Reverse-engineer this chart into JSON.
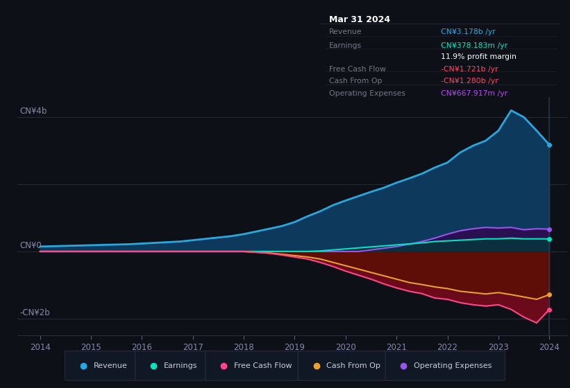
{
  "bg_color": "#0d1117",
  "title_box": {
    "date": "Mar 31 2024",
    "rows": [
      {
        "label": "Revenue",
        "value": "CN¥3.178b /yr",
        "value_color": "#29a8e0"
      },
      {
        "label": "Earnings",
        "value": "CN¥378.183m /yr",
        "value_color": "#00e5c0"
      },
      {
        "label": "",
        "value": "11.9% profit margin",
        "value_color": "#ffffff"
      },
      {
        "label": "Free Cash Flow",
        "value": "-CN¥1.721b /yr",
        "value_color": "#ff4466"
      },
      {
        "label": "Cash From Op",
        "value": "-CN¥1.280b /yr",
        "value_color": "#ff4466"
      },
      {
        "label": "Operating Expenses",
        "value": "CN¥667.917m /yr",
        "value_color": "#bb44ff"
      }
    ]
  },
  "ylabel_top": "CN¥4b",
  "ylabel_zero": "CN¥0",
  "ylabel_bot": "-CN¥2b",
  "legend": [
    {
      "label": "Revenue",
      "color": "#29a8e0"
    },
    {
      "label": "Earnings",
      "color": "#00e5c0"
    },
    {
      "label": "Free Cash Flow",
      "color": "#ff4488"
    },
    {
      "label": "Cash From Op",
      "color": "#e8a030"
    },
    {
      "label": "Operating Expenses",
      "color": "#9955ee"
    }
  ],
  "years": [
    2014.0,
    2014.25,
    2014.5,
    2014.75,
    2015.0,
    2015.25,
    2015.5,
    2015.75,
    2016.0,
    2016.25,
    2016.5,
    2016.75,
    2017.0,
    2017.25,
    2017.5,
    2017.75,
    2018.0,
    2018.25,
    2018.5,
    2018.75,
    2019.0,
    2019.25,
    2019.5,
    2019.75,
    2020.0,
    2020.25,
    2020.5,
    2020.75,
    2021.0,
    2021.25,
    2021.5,
    2021.75,
    2022.0,
    2022.25,
    2022.5,
    2022.75,
    2023.0,
    2023.25,
    2023.5,
    2023.75,
    2024.0
  ],
  "revenue": [
    0.15,
    0.16,
    0.17,
    0.18,
    0.19,
    0.2,
    0.21,
    0.22,
    0.24,
    0.26,
    0.28,
    0.3,
    0.34,
    0.38,
    0.42,
    0.46,
    0.52,
    0.6,
    0.68,
    0.76,
    0.88,
    1.05,
    1.2,
    1.38,
    1.52,
    1.65,
    1.78,
    1.9,
    2.05,
    2.18,
    2.32,
    2.5,
    2.65,
    2.95,
    3.15,
    3.3,
    3.6,
    4.2,
    4.0,
    3.6,
    3.178
  ],
  "earnings": [
    0.005,
    0.005,
    0.005,
    0.005,
    0.005,
    0.005,
    0.005,
    0.005,
    0.005,
    0.005,
    0.005,
    0.005,
    0.005,
    0.005,
    0.005,
    0.005,
    0.005,
    0.005,
    0.005,
    0.005,
    0.005,
    0.005,
    0.02,
    0.05,
    0.08,
    0.11,
    0.14,
    0.17,
    0.2,
    0.23,
    0.26,
    0.3,
    0.32,
    0.34,
    0.36,
    0.38,
    0.38,
    0.4,
    0.38,
    0.38,
    0.378
  ],
  "op_expenses": [
    0.003,
    0.003,
    0.003,
    0.003,
    0.003,
    0.003,
    0.003,
    0.003,
    0.003,
    0.003,
    0.003,
    0.003,
    0.003,
    0.003,
    0.003,
    0.003,
    0.003,
    0.003,
    0.003,
    0.003,
    0.003,
    0.003,
    0.003,
    0.003,
    0.003,
    0.003,
    0.05,
    0.1,
    0.15,
    0.22,
    0.3,
    0.4,
    0.52,
    0.62,
    0.68,
    0.72,
    0.7,
    0.72,
    0.65,
    0.68,
    0.668
  ],
  "cash_op": [
    0.005,
    0.005,
    0.005,
    0.005,
    0.005,
    0.005,
    0.005,
    0.005,
    0.005,
    0.005,
    0.005,
    0.005,
    0.005,
    0.005,
    0.005,
    0.005,
    0.005,
    -0.02,
    -0.04,
    -0.08,
    -0.12,
    -0.16,
    -0.22,
    -0.32,
    -0.42,
    -0.52,
    -0.62,
    -0.72,
    -0.82,
    -0.92,
    -0.98,
    -1.05,
    -1.1,
    -1.18,
    -1.22,
    -1.26,
    -1.22,
    -1.28,
    -1.35,
    -1.42,
    -1.28
  ],
  "free_cash": [
    0.0,
    0.0,
    0.0,
    0.0,
    0.0,
    0.0,
    0.0,
    0.0,
    0.0,
    0.0,
    0.0,
    0.0,
    0.0,
    0.0,
    0.0,
    0.0,
    0.0,
    -0.02,
    -0.05,
    -0.1,
    -0.16,
    -0.22,
    -0.32,
    -0.44,
    -0.58,
    -0.7,
    -0.82,
    -0.96,
    -1.08,
    -1.18,
    -1.25,
    -1.38,
    -1.42,
    -1.52,
    -1.58,
    -1.62,
    -1.58,
    -1.72,
    -1.95,
    -2.12,
    -1.721
  ]
}
